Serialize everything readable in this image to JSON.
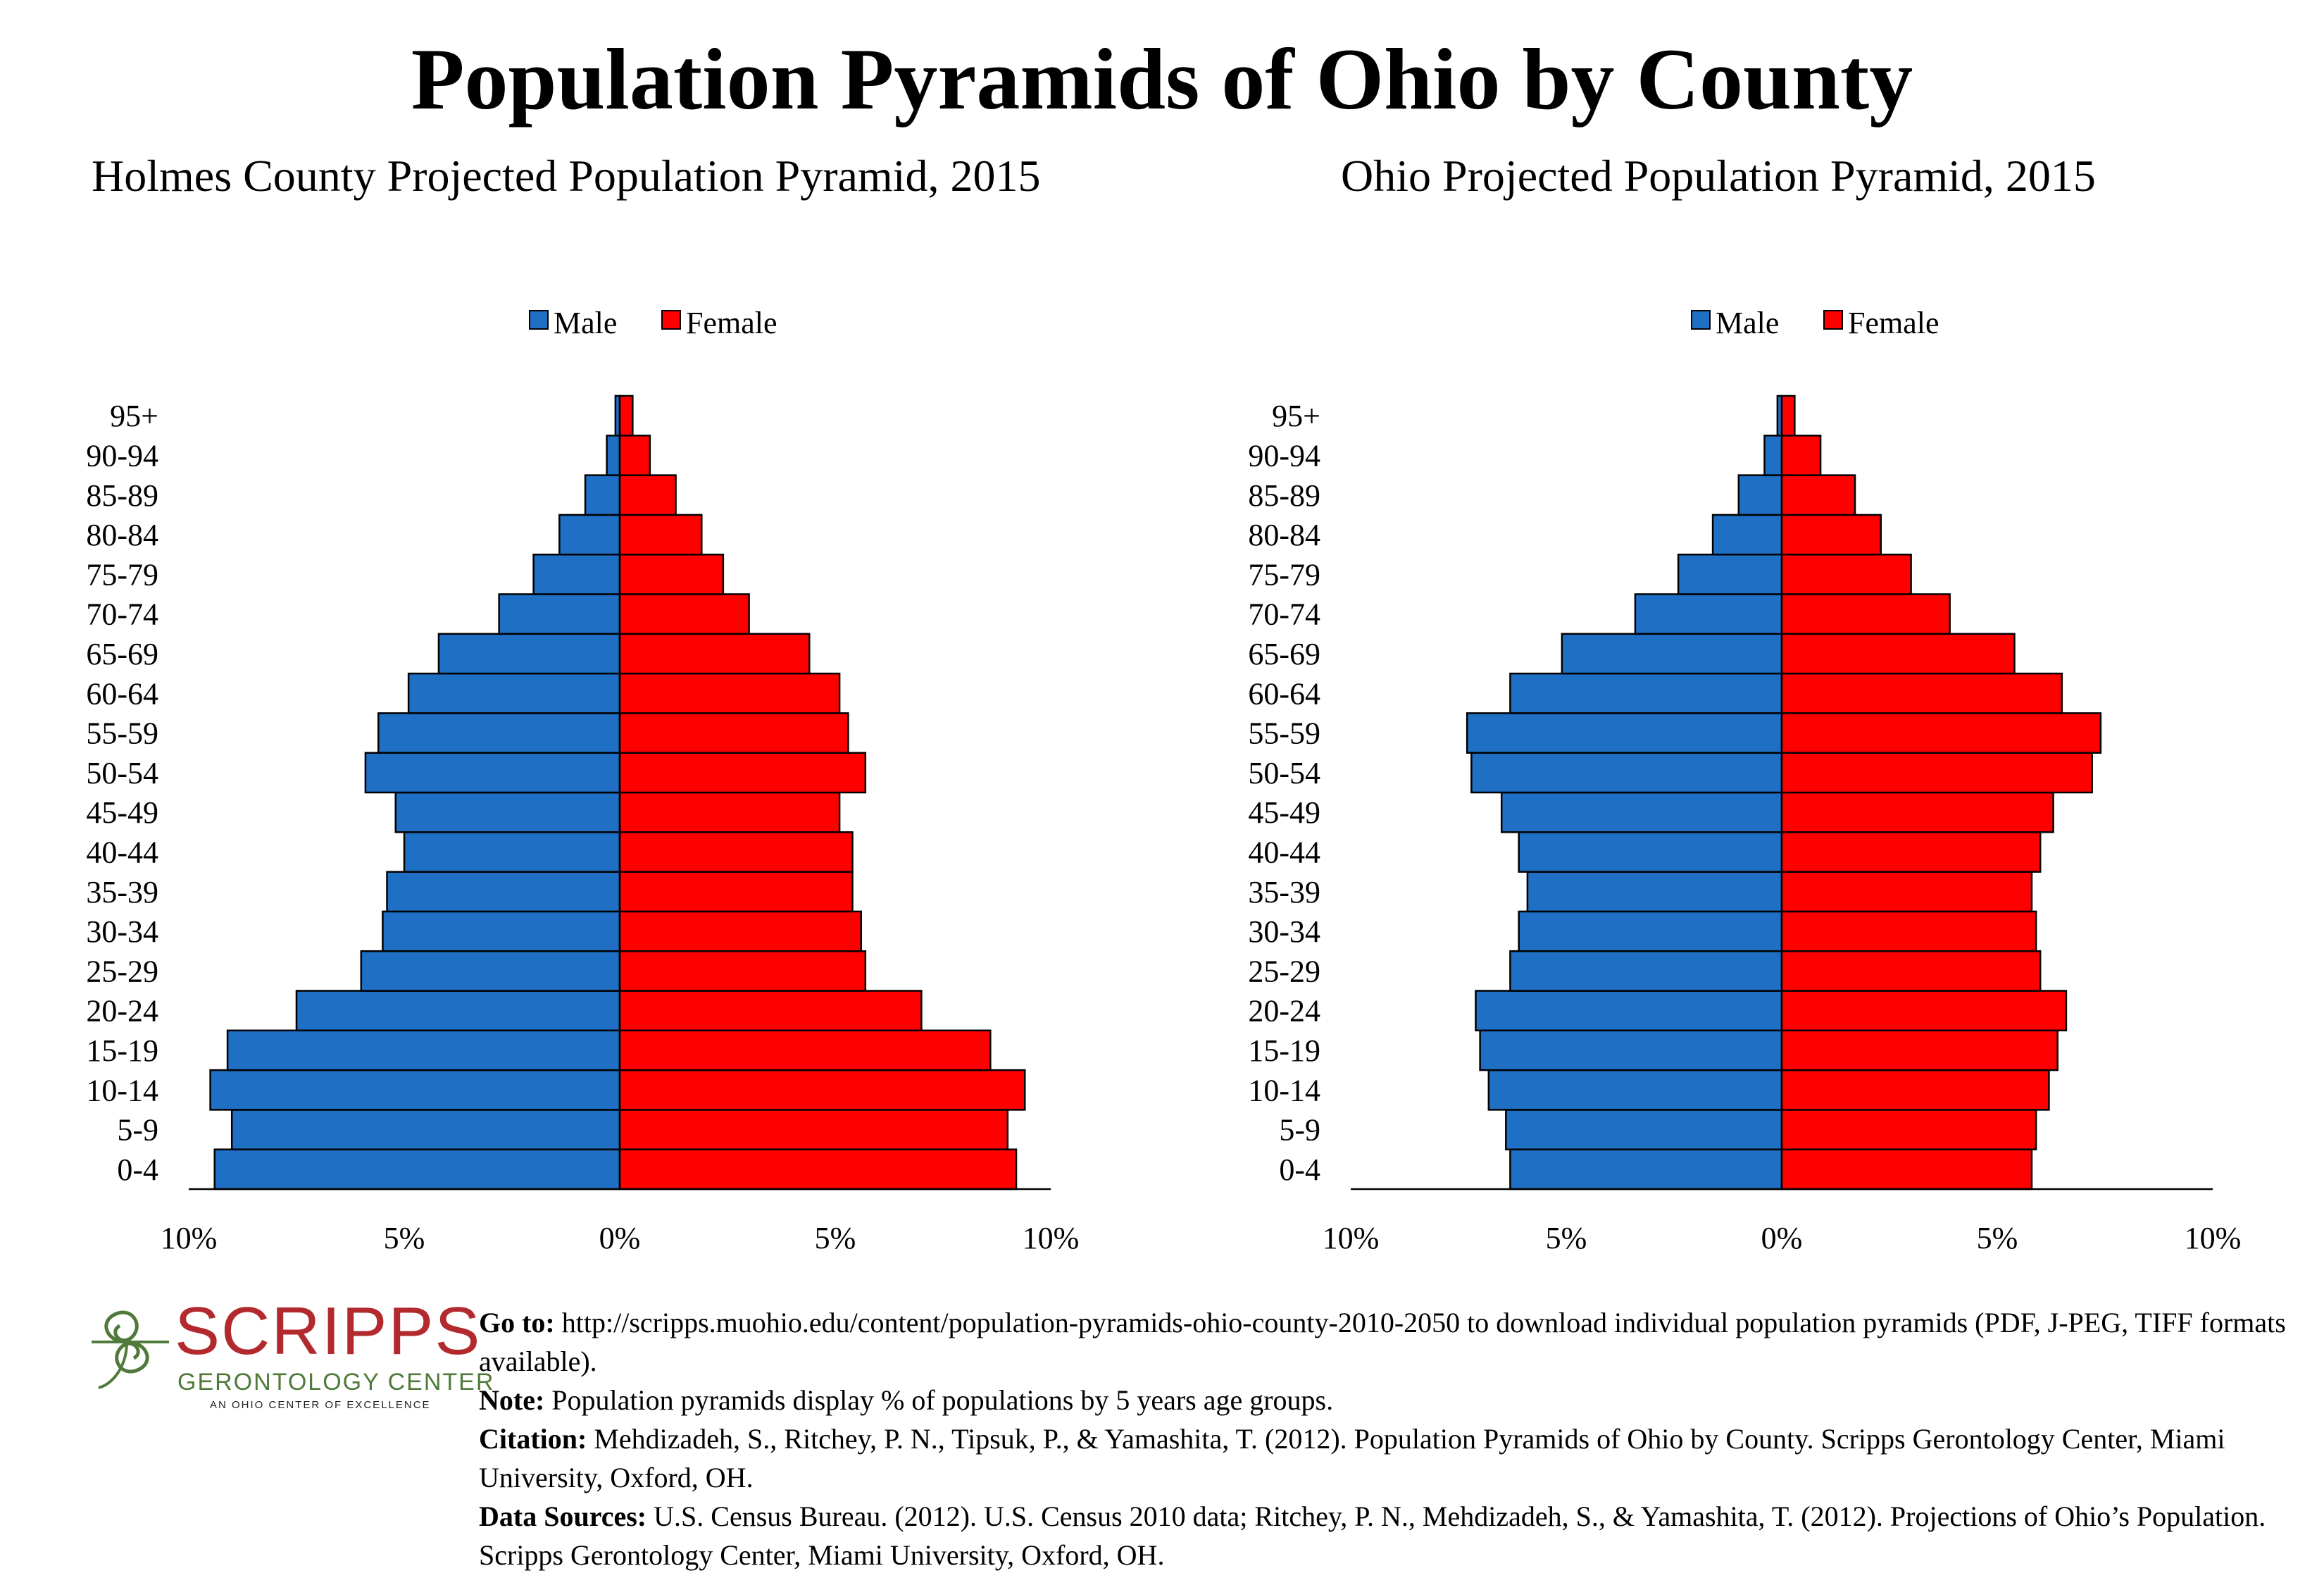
{
  "title": "Population Pyramids of Ohio by County",
  "legend": {
    "male": "Male",
    "female": "Female",
    "male_color": "#1F6FC5",
    "female_color": "#FF0000"
  },
  "chart_data": [
    {
      "type": "bar",
      "orientation": "horizontal-population-pyramid",
      "title": "Holmes County Projected Population Pyramid, 2015",
      "categories": [
        "0-4",
        "5-9",
        "10-14",
        "15-19",
        "20-24",
        "25-29",
        "30-34",
        "35-39",
        "40-44",
        "45-49",
        "50-54",
        "55-59",
        "60-64",
        "65-69",
        "70-74",
        "75-79",
        "80-84",
        "85-89",
        "90-94",
        "95+"
      ],
      "series": [
        {
          "name": "Male",
          "color": "#1F6FC5",
          "values": [
            9.4,
            9.0,
            9.5,
            9.1,
            7.5,
            6.0,
            5.5,
            5.4,
            5.0,
            5.2,
            5.9,
            5.6,
            4.9,
            4.2,
            2.8,
            2.0,
            1.4,
            0.8,
            0.3,
            0.1
          ]
        },
        {
          "name": "Female",
          "color": "#FF0000",
          "values": [
            9.2,
            9.0,
            9.4,
            8.6,
            7.0,
            5.7,
            5.6,
            5.4,
            5.4,
            5.1,
            5.7,
            5.3,
            5.1,
            4.4,
            3.0,
            2.4,
            1.9,
            1.3,
            0.7,
            0.3
          ]
        }
      ],
      "xlim": [
        -10,
        10
      ],
      "xticks": [
        "10%",
        "5%",
        "0%",
        "5%",
        "10%"
      ],
      "legend_position": "top-center"
    },
    {
      "type": "bar",
      "orientation": "horizontal-population-pyramid",
      "title": "Ohio Projected Population Pyramid, 2015",
      "categories": [
        "0-4",
        "5-9",
        "10-14",
        "15-19",
        "20-24",
        "25-29",
        "30-34",
        "35-39",
        "40-44",
        "45-49",
        "50-54",
        "55-59",
        "60-64",
        "65-69",
        "70-74",
        "75-79",
        "80-84",
        "85-89",
        "90-94",
        "95+"
      ],
      "series": [
        {
          "name": "Male",
          "color": "#1F6FC5",
          "values": [
            6.3,
            6.4,
            6.8,
            7.0,
            7.1,
            6.3,
            6.1,
            5.9,
            6.1,
            6.5,
            7.2,
            7.3,
            6.3,
            5.1,
            3.4,
            2.4,
            1.6,
            1.0,
            0.4,
            0.1
          ]
        },
        {
          "name": "Female",
          "color": "#FF0000",
          "values": [
            5.8,
            5.9,
            6.2,
            6.4,
            6.6,
            6.0,
            5.9,
            5.8,
            6.0,
            6.3,
            7.2,
            7.4,
            6.5,
            5.4,
            3.9,
            3.0,
            2.3,
            1.7,
            0.9,
            0.3
          ]
        }
      ],
      "xlim": [
        -10,
        10
      ],
      "xticks": [
        "10%",
        "5%",
        "0%",
        "5%",
        "10%"
      ],
      "legend_position": "top-center"
    }
  ],
  "footer": {
    "logo": {
      "word": "SCRIPPS",
      "sub": "GERONTOLOGY CENTER",
      "tag": "AN OHIO CENTER OF EXCELLENCE"
    },
    "goto_label": "Go to:",
    "goto_text": "http://scripps.muohio.edu/content/population-pyramids-ohio-county-2010-2050 to download individual population pyramids (PDF, J-PEG, TIFF formats available).",
    "note_label": "Note:",
    "note_text": "Population pyramids display % of populations by 5 years age groups.",
    "citation_label": "Citation:",
    "citation_text": "Mehdizadeh, S., Ritchey, P. N., Tipsuk, P., & Yamashita, T. (2012). Population Pyramids of Ohio by County. Scripps Gerontology Center, Miami University, Oxford, OH.",
    "sources_label": "Data Sources:",
    "sources_text": "U.S. Census Bureau. (2012). U.S. Census 2010 data; Ritchey, P. N., Mehdizadeh, S., & Yamashita, T. (2012). Projections of Ohio’s Population. Scripps Gerontology Center, Miami University, Oxford, OH."
  }
}
